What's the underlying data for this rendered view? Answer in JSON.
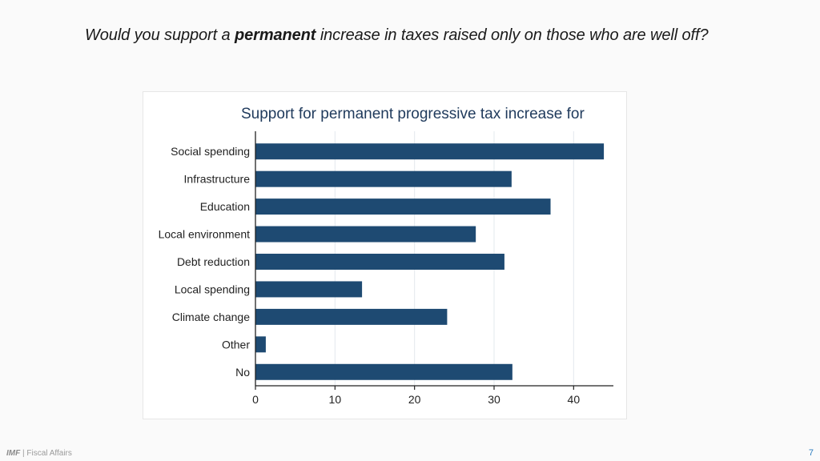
{
  "slide": {
    "question_prefix": "Would you support a ",
    "question_emphasis": "permanent",
    "question_suffix": " increase in taxes raised only on those who are well off?",
    "footer_org": "IMF",
    "footer_separator": " | ",
    "footer_dept": "Fiscal Affairs",
    "page_number": "7"
  },
  "chart_data": {
    "type": "bar",
    "orientation": "horizontal",
    "title": "Support for permanent progressive tax increase for",
    "categories": [
      "Social spending",
      "Infrastructure",
      "Education",
      "Local environment",
      "Debt reduction",
      "Local spending",
      "Climate change",
      "Other",
      "No"
    ],
    "values": [
      43.8,
      32.2,
      37.1,
      27.7,
      31.3,
      13.4,
      24.1,
      1.3,
      32.3
    ],
    "xlim": [
      0,
      45
    ],
    "xticks": [
      0,
      10,
      20,
      30,
      40
    ],
    "xlabel": "",
    "ylabel": "",
    "grid": true,
    "colors": {
      "bar": "#1e4a72",
      "title": "#1f3a5c",
      "grid": "#e3e8ee",
      "axis": "#222222"
    }
  }
}
